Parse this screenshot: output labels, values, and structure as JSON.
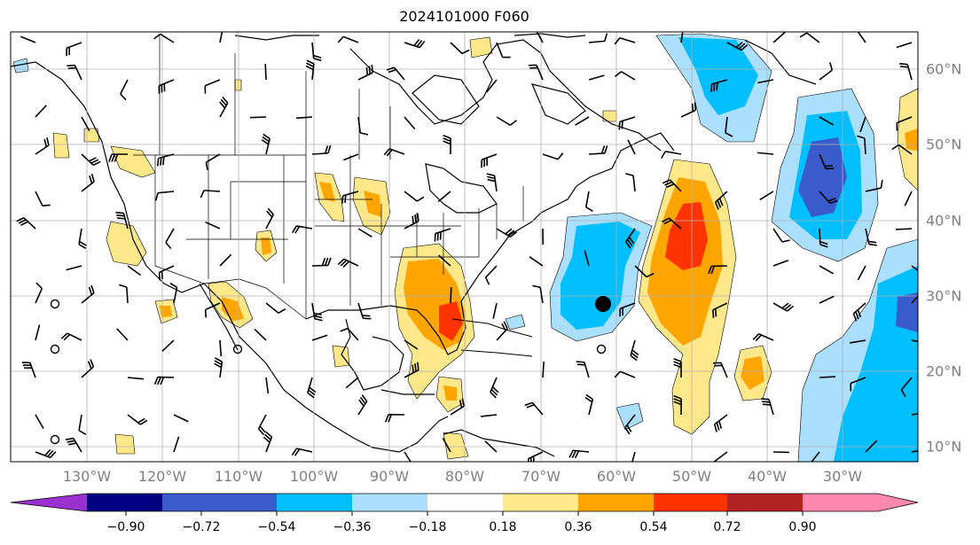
{
  "title": "2024101000 F060",
  "longitude_labels": [
    "130°W",
    "120°W",
    "110°W",
    "100°W",
    "90°W",
    "80°W",
    "70°W",
    "60°W",
    "50°W",
    "40°W",
    "30°W"
  ],
  "latitude_labels": [
    "60°N",
    "50°N",
    "40°N",
    "30°N",
    "20°N",
    "10°N"
  ],
  "colorbar": {
    "ticks": [
      "−0.90",
      "−0.72",
      "−0.54",
      "−0.36",
      "−0.18",
      "0.18",
      "0.36",
      "0.54",
      "0.72",
      "0.90"
    ],
    "colors": [
      "#9b30d0",
      "#000080",
      "#3a5bcc",
      "#00bfff",
      "#aadfff",
      "#ffffff",
      "#ffe88a",
      "#ffa500",
      "#ff3300",
      "#b22222",
      "#ff88b0"
    ]
  },
  "colors": {
    "land_lines": "#000000",
    "grid": "#b0b0b0",
    "positive_light": "#ffe88a",
    "positive_mid": "#ffa500",
    "positive_strong": "#ff3300",
    "negative_light": "#aadfff",
    "negative_mid": "#00bfff",
    "negative_strong": "#3a5bcc"
  }
}
